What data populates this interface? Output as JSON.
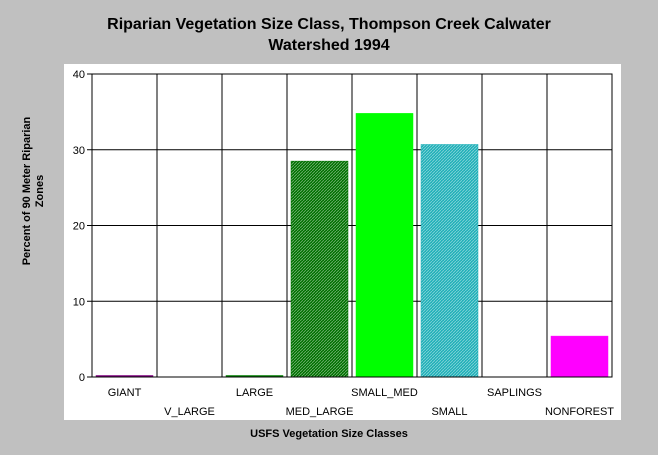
{
  "chart_data": {
    "type": "bar",
    "title_lines": [
      "Riparian Vegetation Size Class, Thompson Creek Calwater",
      "Watershed 1994"
    ],
    "ylabel_lines": [
      "Percent of 90 Meter Riparian",
      "Zones"
    ],
    "xlabel": "USFS Vegetation Size Classes",
    "categories": [
      "GIANT",
      "V_LARGE",
      "LARGE",
      "MED_LARGE",
      "SMALL_MED",
      "SMALL",
      "SAPLINGS",
      "NONFOREST"
    ],
    "values": [
      0.2,
      0,
      0.2,
      28.5,
      34.8,
      30.7,
      0,
      5.4
    ],
    "colors": [
      "#800080",
      "#008000",
      "#008000",
      "#007000",
      "#00ff00",
      "#20b0b8",
      "#00ff00",
      "#ff00ff"
    ],
    "hatched": [
      false,
      false,
      false,
      true,
      false,
      true,
      false,
      false
    ],
    "ylim": [
      0,
      40
    ],
    "yticks": [
      0,
      10,
      20,
      30,
      40
    ],
    "grid": true
  }
}
